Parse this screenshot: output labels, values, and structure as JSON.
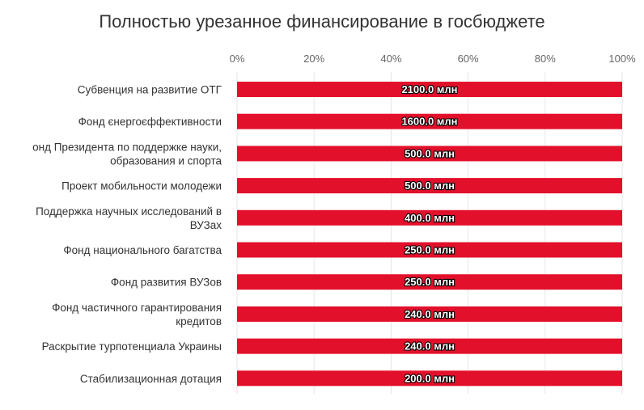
{
  "chart_data": {
    "type": "bar",
    "orientation": "horizontal",
    "stacking": "percent",
    "title": "Полностью урезанное финансирование в госбюджете",
    "categories": [
      "Субвенция на развитие ОТГ",
      "Фонд єнергоєффективности",
      "онд Президента по поддержке науки, образования и спорта",
      "Проект мобильности молодежи",
      "Поддержка научных исследований в ВУЗах",
      "Фонд национального багатства",
      "Фонд развития ВУЗов",
      "Фонд частичного гарантирования кредитов",
      "Раскрытие турпотенциала Украины",
      "Стабилизационная дотация"
    ],
    "category_lines": [
      [
        "Субвенция на развитие ОТГ"
      ],
      [
        "Фонд єнергоєффективности"
      ],
      [
        "онд Президента по поддержке науки,",
        "образования и спорта"
      ],
      [
        "Проект мобильности молодежи"
      ],
      [
        "Поддержка научных исследований в",
        "ВУЗах"
      ],
      [
        "Фонд национального багатства"
      ],
      [
        "Фонд развития ВУЗов"
      ],
      [
        "Фонд частичного гарантирования",
        "кредитов"
      ],
      [
        "Раскрытие турпотенциала Украины"
      ],
      [
        "Стабилизационная дотация"
      ]
    ],
    "values": [
      2100.0,
      1600.0,
      500.0,
      500.0,
      400.0,
      250.0,
      250.0,
      240.0,
      240.0,
      200.0
    ],
    "percent_values": [
      100,
      100,
      100,
      100,
      100,
      100,
      100,
      100,
      100,
      100
    ],
    "data_labels": [
      "2100.0 млн",
      "1600.0 млн",
      "500.0 млн",
      "500.0 млн",
      "400.0 млн",
      "250.0 млн",
      "250.0 млн",
      "240.0 млн",
      "240.0 млн",
      "200.0 млн"
    ],
    "x_ticks": [
      "0%",
      "20%",
      "40%",
      "60%",
      "80%",
      "100%"
    ],
    "xlim": [
      0,
      100
    ],
    "axis_position": "top",
    "grid": true,
    "legend": "none",
    "colors": {
      "bar": "#e3102b",
      "grid": "#e6e6e6",
      "title": "#333333"
    }
  }
}
